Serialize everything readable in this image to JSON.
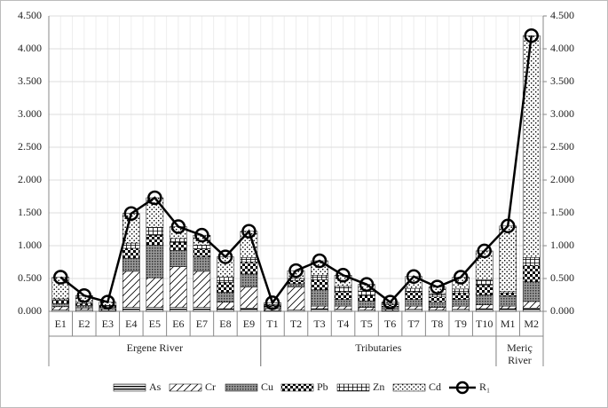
{
  "chart_data": {
    "type": "bar",
    "stacked": true,
    "categories": [
      "E1",
      "E2",
      "E3",
      "E4",
      "E5",
      "E6",
      "E7",
      "E8",
      "E9",
      "T1",
      "T2",
      "T3",
      "T4",
      "T5",
      "T6",
      "T7",
      "T8",
      "T9",
      "T10",
      "M1",
      "M2"
    ],
    "groups": [
      {
        "name": "Ergene River",
        "size": 9
      },
      {
        "name": "Tributaries",
        "size": 10
      },
      {
        "name": "Meriç River",
        "size": 2
      }
    ],
    "series": [
      {
        "name": "As",
        "color": "#000000",
        "values": [
          0.02,
          0.02,
          0.01,
          0.06,
          0.06,
          0.06,
          0.06,
          0.04,
          0.05,
          0.01,
          0.02,
          0.04,
          0.03,
          0.02,
          0.01,
          0.03,
          0.02,
          0.03,
          0.04,
          0.04,
          0.05
        ]
      },
      {
        "name": "Cr",
        "color": "#000000",
        "values": [
          0.05,
          0.03,
          0.02,
          0.55,
          0.45,
          0.62,
          0.55,
          0.1,
          0.32,
          0.03,
          0.35,
          0.04,
          0.05,
          0.04,
          0.02,
          0.05,
          0.04,
          0.05,
          0.06,
          0.04,
          0.1
        ]
      },
      {
        "name": "Cu",
        "color": "#000000",
        "values": [
          0.05,
          0.04,
          0.03,
          0.2,
          0.5,
          0.25,
          0.22,
          0.15,
          0.2,
          0.03,
          0.05,
          0.25,
          0.1,
          0.1,
          0.04,
          0.1,
          0.08,
          0.1,
          0.15,
          0.15,
          0.3
        ]
      },
      {
        "name": "Pb",
        "color": "#000000",
        "values": [
          0.05,
          0.03,
          0.02,
          0.15,
          0.15,
          0.12,
          0.12,
          0.15,
          0.18,
          0.02,
          0.05,
          0.15,
          0.12,
          0.08,
          0.03,
          0.12,
          0.08,
          0.1,
          0.15,
          0.05,
          0.25
        ]
      },
      {
        "name": "Zn",
        "color": "#000000",
        "values": [
          0.02,
          0.02,
          0.01,
          0.08,
          0.12,
          0.06,
          0.06,
          0.08,
          0.07,
          0.01,
          0.03,
          0.07,
          0.08,
          0.07,
          0.02,
          0.05,
          0.05,
          0.06,
          0.08,
          0.02,
          0.12
        ]
      },
      {
        "name": "Cd",
        "color": "#000000",
        "values": [
          0.33,
          0.1,
          0.05,
          0.45,
          0.45,
          0.18,
          0.15,
          0.31,
          0.4,
          0.03,
          0.12,
          0.22,
          0.17,
          0.1,
          0.02,
          0.18,
          0.1,
          0.18,
          0.44,
          1.0,
          3.38
        ]
      },
      {
        "name": "R₁",
        "type": "line",
        "axis": "y2",
        "color": "#000000",
        "values": [
          0.52,
          0.24,
          0.14,
          1.49,
          1.73,
          1.29,
          1.16,
          0.83,
          1.22,
          0.13,
          0.62,
          0.77,
          0.55,
          0.41,
          0.14,
          0.53,
          0.37,
          0.52,
          0.92,
          1.3,
          4.2
        ]
      }
    ],
    "ylim": [
      0,
      4.5
    ],
    "yticks": [
      {
        "value": 0,
        "label": "0.000"
      },
      {
        "value": 0.5,
        "label": "0.500"
      },
      {
        "value": 1,
        "label": "1.000"
      },
      {
        "value": 1.5,
        "label": "1.500"
      },
      {
        "value": 2,
        "label": "2.000"
      },
      {
        "value": 2.5,
        "label": "2.500"
      },
      {
        "value": 3,
        "label": "3.000"
      },
      {
        "value": 3.5,
        "label": "3.500"
      },
      {
        "value": 4,
        "label": "4.000"
      },
      {
        "value": 4.5,
        "label": "4.500"
      }
    ],
    "y2lim": [
      0,
      4.5
    ],
    "y2ticks": [
      {
        "value": 0,
        "label": "0.000"
      },
      {
        "value": 0.5,
        "label": "0.500"
      },
      {
        "value": 1,
        "label": "1.000"
      },
      {
        "value": 1.5,
        "label": "1.500"
      },
      {
        "value": 2,
        "label": "2.000"
      },
      {
        "value": 2.5,
        "label": "2.500"
      },
      {
        "value": 3,
        "label": "3.000"
      },
      {
        "value": 3.5,
        "label": "3.500"
      },
      {
        "value": 4,
        "label": "4.000"
      },
      {
        "value": 4.5,
        "label": "4.500"
      }
    ],
    "grid": true,
    "legend": "bottom"
  }
}
